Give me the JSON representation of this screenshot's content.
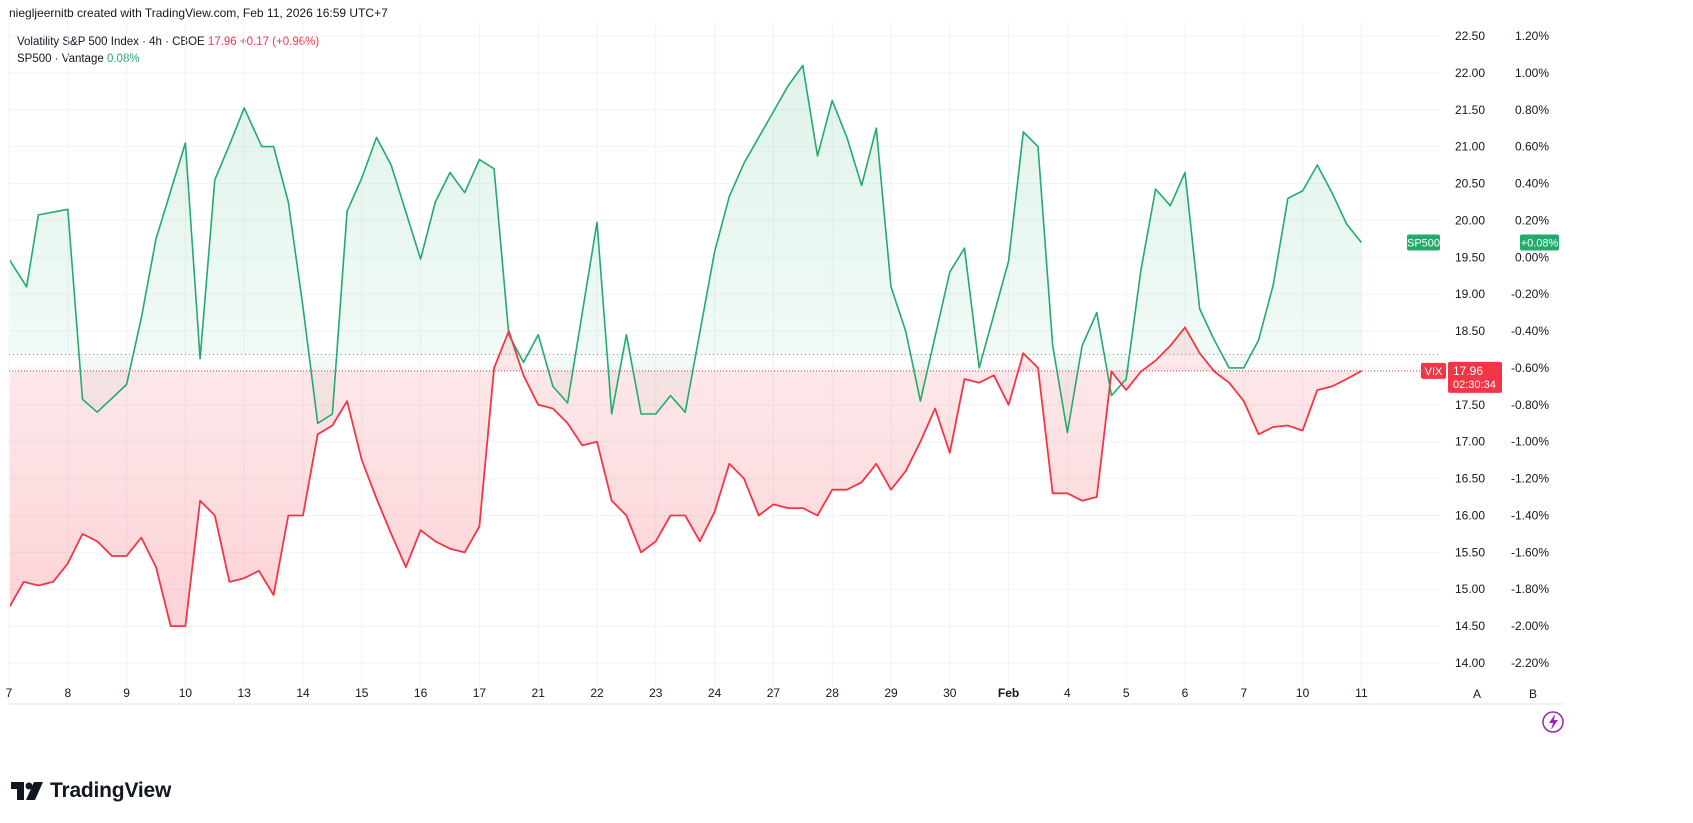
{
  "credit": "niegljeernitb created with TradingView.com, Feb 11, 2026 16:59 UTC+7",
  "legend": {
    "vix_name": "Volatility S&P 500 Index · 4h · CBOE",
    "vix_value": "17.96",
    "vix_change": "+0.17 (+0.96%)",
    "sp_name": "SP500 · Vantage",
    "sp_value": "0.08%"
  },
  "brand": "TradingView",
  "colors": {
    "vix": "#f23645",
    "sp500": "#22ab6d",
    "sp500_dark": "#089981",
    "grid": "#f0f3fa"
  },
  "badges": {
    "sp_label": "SP500",
    "sp_value": "+0.08%",
    "vix_label": "VIX",
    "vix_price": "17.96",
    "vix_countdown": "02:30:34"
  },
  "axis_buttons": [
    "A",
    "B"
  ],
  "chart_data": {
    "type": "line",
    "x_ticks": [
      "7",
      "8",
      "9",
      "10",
      "13",
      "14",
      "15",
      "16",
      "17",
      "21",
      "22",
      "23",
      "24",
      "27",
      "28",
      "29",
      "30",
      "Feb",
      "4",
      "5",
      "6",
      "7",
      "10",
      "11"
    ],
    "y_left_ticks_label": "VIX price axis",
    "y_ticks_vix": [
      "22.50",
      "22.00",
      "21.50",
      "21.00",
      "20.50",
      "20.00",
      "19.50",
      "19.00",
      "18.50",
      "18.00",
      "17.50",
      "17.00",
      "16.50",
      "16.00",
      "15.50",
      "15.00",
      "14.50",
      "14.00"
    ],
    "y_ticks_sp500": [
      "1.20%",
      "1.00%",
      "0.80%",
      "0.60%",
      "0.40%",
      "0.20%",
      "0.00%",
      "-0.20%",
      "-0.40%",
      "-0.60%",
      "-0.80%",
      "-1.00%",
      "-1.20%",
      "-1.40%",
      "-1.60%",
      "-1.80%",
      "-2.00%",
      "-2.20%"
    ],
    "vix_range": [
      14.0,
      22.5
    ],
    "sp500_range": [
      -2.2,
      1.2
    ],
    "vix_last": 17.96,
    "sp500_last": 0.08,
    "series": [
      {
        "name": "SP500",
        "unit": "%",
        "x": [
          0,
          0.3,
          0.5,
          1,
          1.25,
          1.5,
          2,
          2.25,
          2.5,
          3,
          3.25,
          3.5,
          3.75,
          4,
          4.3,
          4.5,
          4.75,
          5,
          5.25,
          5.5,
          5.75,
          6,
          6.25,
          6.5,
          7,
          7.25,
          7.5,
          7.75,
          8,
          8.25,
          8.5,
          8.75,
          9,
          9.25,
          9.5,
          10,
          10.25,
          10.5,
          10.75,
          11,
          11.25,
          11.5,
          12,
          12.25,
          12.5,
          13,
          13.25,
          13.5,
          13.75,
          14,
          14.25,
          14.5,
          14.75,
          15,
          15.25,
          15.5,
          16,
          16.25,
          16.5,
          17,
          17.25,
          17.5,
          17.75,
          18,
          18.25,
          18.5,
          18.75,
          19,
          19.25,
          19.5,
          19.75,
          20,
          20.25,
          20.5,
          20.75,
          21,
          21.25,
          21.5,
          21.75,
          22,
          22.25,
          22.5,
          22.75,
          23
        ],
        "values": [
          -0.01,
          -0.16,
          0.23,
          0.26,
          -0.77,
          -0.84,
          -0.69,
          -0.33,
          0.1,
          0.62,
          -0.55,
          0.42,
          0.61,
          0.81,
          0.6,
          0.6,
          0.3,
          -0.27,
          -0.9,
          -0.85,
          0.25,
          0.43,
          0.65,
          0.5,
          -0.01,
          0.3,
          0.46,
          0.35,
          0.53,
          0.48,
          -0.42,
          -0.57,
          -0.42,
          -0.7,
          -0.79,
          0.19,
          -0.85,
          -0.42,
          -0.85,
          -0.85,
          -0.75,
          -0.84,
          0.03,
          0.33,
          0.51,
          0.79,
          0.93,
          1.04,
          0.55,
          0.85,
          0.65,
          0.39,
          0.7,
          -0.16,
          -0.4,
          -0.78,
          -0.08,
          0.05,
          -0.6,
          -0.02,
          0.68,
          0.6,
          -0.48,
          -0.95,
          -0.48,
          -0.3,
          -0.75,
          -0.66,
          -0.07,
          0.37,
          0.28,
          0.46,
          -0.28,
          -0.45,
          -0.6,
          -0.6,
          -0.45,
          -0.15,
          0.32,
          0.36,
          0.5,
          0.35,
          0.18,
          0.08
        ]
      },
      {
        "name": "VIX",
        "unit": "index points",
        "x": [
          0,
          0.25,
          0.5,
          0.75,
          1,
          1.25,
          1.5,
          1.75,
          2,
          2.25,
          2.5,
          2.75,
          3,
          3.25,
          3.5,
          3.75,
          4,
          4.25,
          4.5,
          4.75,
          5,
          5.25,
          5.5,
          5.75,
          6,
          6.25,
          6.5,
          6.75,
          7,
          7.25,
          7.5,
          7.75,
          8,
          8.25,
          8.5,
          8.75,
          9,
          9.25,
          9.5,
          9.75,
          10,
          10.25,
          10.5,
          10.75,
          11,
          11.25,
          11.5,
          11.75,
          12,
          12.25,
          12.5,
          12.75,
          13,
          13.25,
          13.5,
          13.75,
          14,
          14.25,
          14.5,
          14.75,
          15,
          15.25,
          15.5,
          15.75,
          16,
          16.25,
          16.5,
          16.75,
          17,
          17.25,
          17.5,
          17.75,
          18,
          18.25,
          18.5,
          18.75,
          19,
          19.25,
          19.5,
          19.75,
          20,
          20.25,
          20.5,
          20.75,
          21,
          21.25,
          21.5,
          21.75,
          22,
          22.25,
          22.5,
          22.75,
          23
        ],
        "values": [
          14.75,
          15.1,
          15.05,
          15.1,
          15.35,
          15.75,
          15.65,
          15.45,
          15.45,
          15.7,
          15.3,
          14.5,
          14.5,
          16.2,
          16.0,
          15.1,
          15.15,
          15.25,
          14.92,
          16.0,
          16.0,
          17.1,
          17.22,
          17.55,
          16.75,
          16.23,
          15.75,
          15.3,
          15.8,
          15.65,
          15.55,
          15.5,
          15.85,
          18.0,
          18.5,
          17.9,
          17.5,
          17.45,
          17.25,
          16.95,
          17.0,
          16.2,
          16.0,
          15.5,
          15.65,
          16.0,
          16.0,
          15.65,
          16.05,
          16.7,
          16.5,
          16.0,
          16.15,
          16.1,
          16.1,
          16.0,
          16.35,
          16.35,
          16.45,
          16.7,
          16.35,
          16.6,
          17.0,
          17.45,
          16.85,
          17.85,
          17.8,
          17.9,
          17.5,
          18.2,
          18.0,
          16.3,
          16.3,
          16.2,
          16.25,
          17.95,
          17.7,
          17.95,
          18.1,
          18.3,
          18.55,
          18.2,
          17.95,
          17.8,
          17.55,
          17.1,
          17.2,
          17.22,
          17.15,
          17.7,
          17.75,
          17.85,
          17.96
        ]
      }
    ],
    "grid": true,
    "legend_position": "top-left"
  }
}
